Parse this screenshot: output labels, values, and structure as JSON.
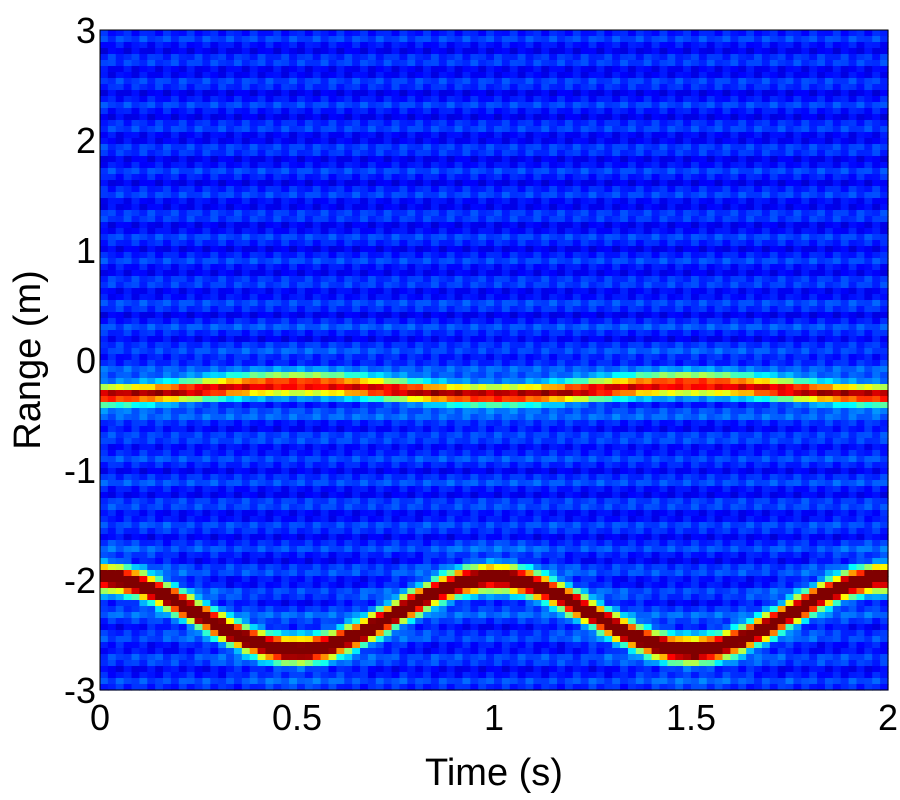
{
  "chart_data": {
    "type": "heatmap",
    "title": "",
    "xlabel": "Time (s)",
    "ylabel": "Range (m)",
    "xlim": [
      0,
      2
    ],
    "ylim": [
      -3,
      3
    ],
    "xticks": [
      "0",
      "0.5",
      "1",
      "1.5",
      "2"
    ],
    "xtick_values": [
      0,
      0.5,
      1,
      1.5,
      2
    ],
    "yticks": [
      "3",
      "2",
      "1",
      "0",
      "-1",
      "-2",
      "-3"
    ],
    "ytick_values": [
      3,
      2,
      1,
      0,
      -1,
      -2,
      -3
    ],
    "colormap": "jet",
    "background_intensity": 0.15,
    "bands": [
      {
        "name": "upper-return",
        "center_m": -0.27,
        "amplitude_m": 0.05,
        "period_s": 1,
        "phase": "min at 0.5 s",
        "width_m": 0.07,
        "peak_intensity": 0.7
      },
      {
        "name": "lower-return",
        "center_m": -2.31,
        "amplitude_m": 0.33,
        "period_s": 1,
        "phase": "max at 0.5 s",
        "width_m": 0.08,
        "peak_intensity": 1.0
      }
    ]
  }
}
